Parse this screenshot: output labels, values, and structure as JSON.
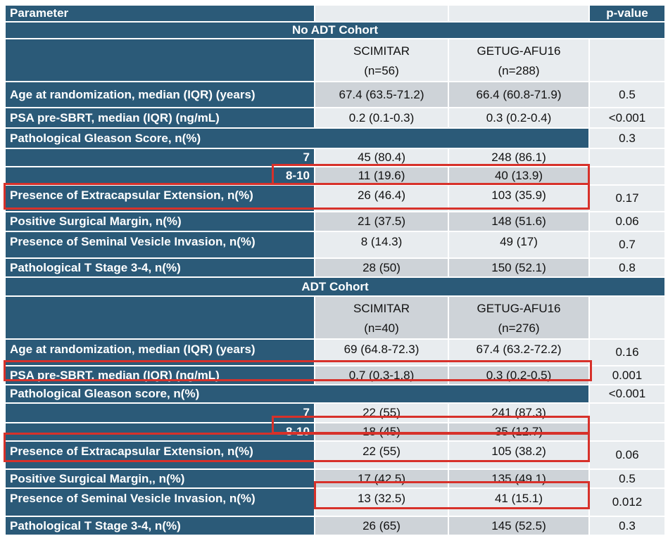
{
  "colors": {
    "header_bg": "#2B5A78",
    "light_cell": "#E8ECEF",
    "mid_cell": "#CED3D8",
    "highlight": "#D7312A"
  },
  "table": {
    "header": {
      "parameter": "Parameter",
      "p_value": "p-value"
    },
    "no_adt": {
      "title": "No ADT Cohort",
      "group1": {
        "name": "SCIMITAR",
        "n": "(n=56)"
      },
      "group2": {
        "name": "GETUG-AFU16",
        "n": "(n=288)"
      },
      "rows": [
        {
          "label": "Age at randomization, median (IQR) (years)",
          "v1": "67.4 (63.5-71.2)",
          "v2": "66.4 (60.8-71.9)",
          "p": "0.5"
        },
        {
          "label": "PSA pre-SBRT, median (IQR) (ng/mL)",
          "v1": "0.2 (0.1-0.3)",
          "v2": "0.3 (0.2-0.4)",
          "p": "<0.001"
        },
        {
          "label": "Pathological Gleason Score, n(%)",
          "p": "0.3"
        },
        {
          "label": "7",
          "v1": "45 (80.4)",
          "v2": "248 (86.1)"
        },
        {
          "label": "8-10",
          "v1": "11 (19.6)",
          "v2": "40 (13.9)"
        },
        {
          "label": "Presence of Extracapsular Extension, n(%)",
          "v1": "26 (46.4)",
          "v2": "103 (35.9)",
          "p": "0.17"
        },
        {
          "label": "Positive Surgical Margin, n(%)",
          "v1": "21 (37.5)",
          "v2": "148 (51.6)",
          "p": "0.06"
        },
        {
          "label": "Presence of Seminal Vesicle Invasion, n(%)",
          "v1": "8 (14.3)",
          "v2": "49 (17)",
          "p": "0.7"
        },
        {
          "label": "Pathological T Stage 3-4, n(%)",
          "v1": "28 (50)",
          "v2": "150 (52.1)",
          "p": "0.8"
        }
      ]
    },
    "adt": {
      "title": "ADT Cohort",
      "group1": {
        "name": "SCIMITAR",
        "n": "(n=40)"
      },
      "group2": {
        "name": "GETUG-AFU16",
        "n": "(n=276)"
      },
      "rows": [
        {
          "label": "Age at randomization, median (IQR) (years)",
          "v1": "69 (64.8-72.3)",
          "v2": "67.4 (63.2-72.2)",
          "p": "0.16"
        },
        {
          "label": "PSA pre-SBRT, median (IQR) (ng/mL)",
          "v1": "0.7 (0.3-1.8)",
          "v2": "0.3 (0.2-0.5)",
          "p": "0.001"
        },
        {
          "label": "Pathological Gleason score, n(%)",
          "p": "<0.001"
        },
        {
          "label": "7",
          "v1": "22 (55)",
          "v2": "241 (87.3)"
        },
        {
          "label": "8-10",
          "v1": "18 (45)",
          "v2": "35 (12.7)"
        },
        {
          "label": "Presence of Extracapsular Extension, n(%)",
          "v1": "22 (55)",
          "v2": "105 (38.2)",
          "p": "0.06"
        },
        {
          "label": "Positive Surgical Margin,, n(%)",
          "v1": "17 (42.5)",
          "v2": "135 (49.1)",
          "p": "0.5"
        },
        {
          "label": "Presence of Seminal Vesicle Invasion, n(%)",
          "v1": "13 (32.5)",
          "v2": "41 (15.1)",
          "p": "0.012"
        },
        {
          "label": "Pathological T Stage 3-4, n(%)",
          "v1": "26 (65)",
          "v2": "145 (52.5)",
          "p": "0.3"
        }
      ]
    }
  }
}
